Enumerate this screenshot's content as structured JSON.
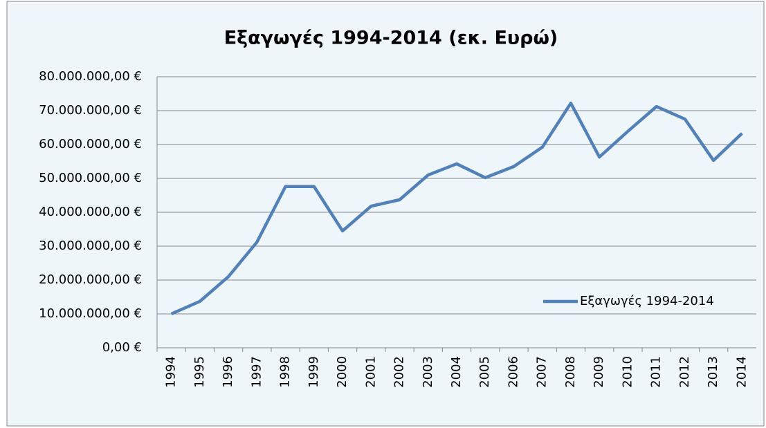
{
  "chart_data": {
    "type": "line",
    "title": "Εξαγωγές 1994-2014 (εκ. Ευρώ)",
    "categories": [
      "1994",
      "1995",
      "1996",
      "1997",
      "1998",
      "1999",
      "2000",
      "2001",
      "2002",
      "2003",
      "2004",
      "2005",
      "2006",
      "2007",
      "2008",
      "2009",
      "2010",
      "2011",
      "2012",
      "2013",
      "2014"
    ],
    "series": [
      {
        "name": "Εξαγωγές 1994-2014",
        "color": "#4f81bd",
        "values": [
          10000000,
          13700000,
          21000000,
          31200000,
          47600000,
          47600000,
          34500000,
          41800000,
          43700000,
          51000000,
          54300000,
          50200000,
          53500000,
          59200000,
          72200000,
          56300000,
          63900000,
          71200000,
          67500000,
          55300000,
          63300000
        ]
      }
    ],
    "ylim": [
      0,
      80000000
    ],
    "yticks": [
      {
        "value": 0,
        "label": "0,00 €"
      },
      {
        "value": 10000000,
        "label": "10.000.000,00 €"
      },
      {
        "value": 20000000,
        "label": "20.000.000,00 €"
      },
      {
        "value": 30000000,
        "label": "30.000.000,00 €"
      },
      {
        "value": 40000000,
        "label": "40.000.000,00 €"
      },
      {
        "value": 50000000,
        "label": "50.000.000,00 €"
      },
      {
        "value": 60000000,
        "label": "60.000.000,00 €"
      },
      {
        "value": 70000000,
        "label": "70.000.000,00 €"
      },
      {
        "value": 80000000,
        "label": "80.000.000,00 €"
      }
    ],
    "grid": true,
    "legend_position": "right"
  }
}
